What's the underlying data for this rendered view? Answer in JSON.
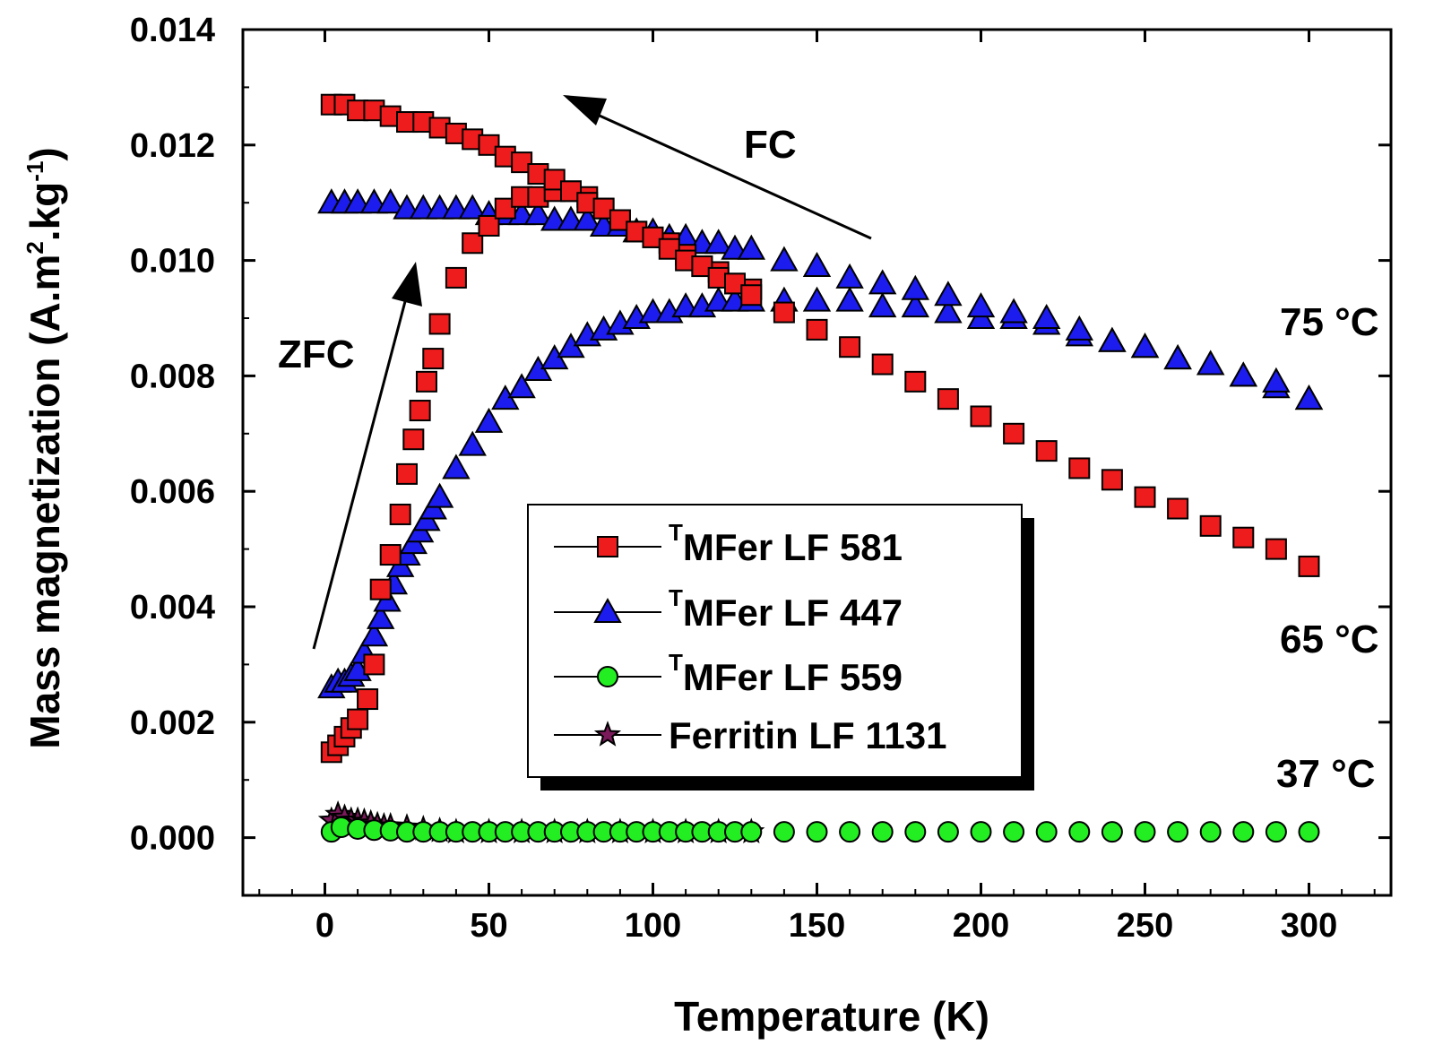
{
  "chart_data": {
    "type": "scatter",
    "title": "",
    "xlabel": "Temperature (K)",
    "ylabel_main": "Mass magnetization (A.m",
    "ylabel_sup1": "2",
    "ylabel_mid": ".kg",
    "ylabel_sup2": "-1",
    "ylabel_end": ")",
    "xlim": [
      -25,
      325
    ],
    "ylim": [
      -0.001,
      0.014
    ],
    "xticks": [
      0,
      50,
      100,
      150,
      200,
      250,
      300
    ],
    "xtick_labels": [
      "0",
      "50",
      "100",
      "150",
      "200",
      "250",
      "300"
    ],
    "yticks": [
      0.0,
      0.002,
      0.004,
      0.006,
      0.008,
      0.01,
      0.012,
      0.014
    ],
    "ytick_labels": [
      "0.000",
      "0.002",
      "0.004",
      "0.006",
      "0.008",
      "0.010",
      "0.012",
      "0.014"
    ],
    "legend_placement": "center",
    "series": [
      {
        "name": "MFer LF 581",
        "name_sup": "T",
        "marker": "square",
        "color": "#ee1c1c",
        "zfc": {
          "x": [
            2,
            4,
            6,
            8,
            10,
            13,
            15,
            17,
            20,
            23,
            25,
            27,
            29,
            31,
            33,
            35,
            40,
            45,
            50,
            55,
            60,
            65,
            70,
            75,
            80,
            85,
            90,
            95,
            100,
            105,
            110,
            115,
            120,
            125,
            130,
            140,
            150,
            160,
            170,
            180,
            190,
            200,
            210,
            220,
            230,
            240,
            250,
            260,
            270,
            280,
            290,
            300
          ],
          "y": [
            0.00148,
            0.0016,
            0.00175,
            0.0019,
            0.00205,
            0.0024,
            0.003,
            0.0043,
            0.0049,
            0.0056,
            0.0063,
            0.0069,
            0.0074,
            0.0079,
            0.0083,
            0.0089,
            0.0097,
            0.0103,
            0.0106,
            0.0109,
            0.0111,
            0.0111,
            0.0112,
            0.0112,
            0.0111,
            0.0109,
            0.0107,
            0.0105,
            0.0104,
            0.0103,
            0.0101,
            0.0099,
            0.0098,
            0.0096,
            0.0095,
            0.0091,
            0.0088,
            0.0085,
            0.0082,
            0.0079,
            0.0076,
            0.0073,
            0.007,
            0.0067,
            0.0064,
            0.0062,
            0.0059,
            0.0057,
            0.0054,
            0.0052,
            0.005,
            0.0047
          ]
        },
        "fc": {
          "x": [
            2,
            6,
            10,
            15,
            20,
            25,
            30,
            35,
            40,
            45,
            50,
            55,
            60,
            65,
            70,
            75,
            80,
            85,
            90,
            95,
            100,
            105,
            110,
            115,
            120,
            125,
            130
          ],
          "y": [
            0.0127,
            0.0127,
            0.0126,
            0.0126,
            0.0125,
            0.0124,
            0.0124,
            0.0123,
            0.0122,
            0.0121,
            0.012,
            0.0118,
            0.0117,
            0.0115,
            0.0114,
            0.0112,
            0.011,
            0.0109,
            0.0107,
            0.0105,
            0.0104,
            0.0102,
            0.01,
            0.0099,
            0.0097,
            0.0096,
            0.0094
          ]
        }
      },
      {
        "name": "MFer LF 447",
        "name_sup": "T",
        "marker": "triangle",
        "color": "#1c1cee",
        "zfc": {
          "x": [
            2,
            4,
            6,
            8,
            10,
            12,
            15,
            17,
            19,
            21,
            23,
            25,
            27,
            29,
            31,
            33,
            35,
            40,
            45,
            50,
            55,
            60,
            65,
            70,
            75,
            80,
            85,
            90,
            95,
            100,
            105,
            110,
            115,
            120,
            125,
            130,
            140,
            150,
            160,
            170,
            180,
            190,
            200,
            210,
            220,
            230,
            240,
            250,
            260,
            270,
            280,
            290,
            300
          ],
          "y": [
            0.0026,
            0.0027,
            0.0027,
            0.0028,
            0.0029,
            0.0032,
            0.0035,
            0.0038,
            0.0041,
            0.0044,
            0.0047,
            0.0049,
            0.0051,
            0.0053,
            0.0055,
            0.0057,
            0.0059,
            0.0064,
            0.0068,
            0.0072,
            0.0076,
            0.0078,
            0.0081,
            0.0083,
            0.0085,
            0.0087,
            0.0088,
            0.0089,
            0.009,
            0.0091,
            0.0091,
            0.0092,
            0.0092,
            0.0093,
            0.0093,
            0.0093,
            0.0093,
            0.0093,
            0.0093,
            0.0092,
            0.0092,
            0.0091,
            0.009,
            0.009,
            0.0089,
            0.0087,
            0.0086,
            0.0085,
            0.0083,
            0.0082,
            0.008,
            0.0078,
            0.0076
          ]
        },
        "fc": {
          "x": [
            2,
            6,
            10,
            15,
            20,
            25,
            30,
            35,
            40,
            45,
            50,
            55,
            60,
            65,
            70,
            75,
            80,
            85,
            90,
            95,
            100,
            105,
            110,
            115,
            120,
            125,
            130,
            140,
            150,
            160,
            170,
            180,
            190,
            200,
            210,
            220,
            230,
            240,
            250,
            260,
            270,
            280,
            290,
            300
          ],
          "y": [
            0.011,
            0.011,
            0.011,
            0.011,
            0.011,
            0.0109,
            0.0109,
            0.0109,
            0.0109,
            0.0109,
            0.0108,
            0.0108,
            0.0108,
            0.0108,
            0.0107,
            0.0107,
            0.0107,
            0.0106,
            0.0106,
            0.0105,
            0.0105,
            0.0104,
            0.0104,
            0.0103,
            0.0103,
            0.0102,
            0.0102,
            0.01,
            0.0099,
            0.0097,
            0.0096,
            0.0095,
            0.0094,
            0.0092,
            0.0091,
            0.009,
            0.0088,
            0.0086,
            0.0085,
            0.0083,
            0.0082,
            0.008,
            0.0079,
            0.0076
          ]
        }
      },
      {
        "name": "MFer LF 559",
        "name_sup": "T",
        "marker": "circle",
        "color": "#22ee22",
        "zfc": {
          "x": [
            2,
            5,
            10,
            15,
            20,
            25,
            30,
            35,
            40,
            45,
            50,
            55,
            60,
            65,
            70,
            75,
            80,
            85,
            90,
            95,
            100,
            105,
            110,
            115,
            120,
            125,
            130,
            140,
            150,
            160,
            170,
            180,
            190,
            200,
            210,
            220,
            230,
            240,
            250,
            260,
            270,
            280,
            290,
            300
          ],
          "y": [
            0.0001,
            0.00018,
            0.00015,
            0.00013,
            0.00012,
            0.0001,
            0.0001,
            0.0001,
            0.0001,
            0.0001,
            0.0001,
            0.0001,
            0.0001,
            0.0001,
            0.0001,
            0.0001,
            0.0001,
            0.0001,
            0.0001,
            0.0001,
            0.0001,
            0.0001,
            0.0001,
            0.0001,
            0.0001,
            0.0001,
            0.0001,
            0.0001,
            0.0001,
            0.0001,
            0.0001,
            0.0001,
            0.0001,
            0.0001,
            0.0001,
            0.0001,
            0.0001,
            0.0001,
            0.0001,
            0.0001,
            0.0001,
            0.0001,
            0.0001,
            0.0001
          ]
        }
      },
      {
        "name": "Ferritin LF 1131",
        "name_sup": "",
        "marker": "star",
        "color": "#7a1a5a",
        "zfc": {
          "x": [
            2,
            4,
            6,
            8,
            10,
            12,
            14,
            16,
            18,
            20,
            25,
            30,
            35,
            40,
            50,
            60,
            70,
            80,
            90,
            100,
            110,
            120,
            130
          ],
          "y": [
            0.0003,
            0.0004,
            0.00035,
            0.0003,
            0.0003,
            0.00028,
            0.00025,
            0.00022,
            0.0002,
            0.0002,
            0.00018,
            0.00015,
            0.00012,
            0.0001,
            0.0001,
            0.0001,
            0.0001,
            0.0001,
            0.0001,
            0.0001,
            0.0001,
            0.0001,
            0.0001
          ]
        }
      }
    ],
    "annotations": {
      "fc_label": "FC",
      "zfc_label": "ZFC",
      "temp_75": "75 °C",
      "temp_65": "65 °C",
      "temp_37": "37 °C"
    }
  }
}
